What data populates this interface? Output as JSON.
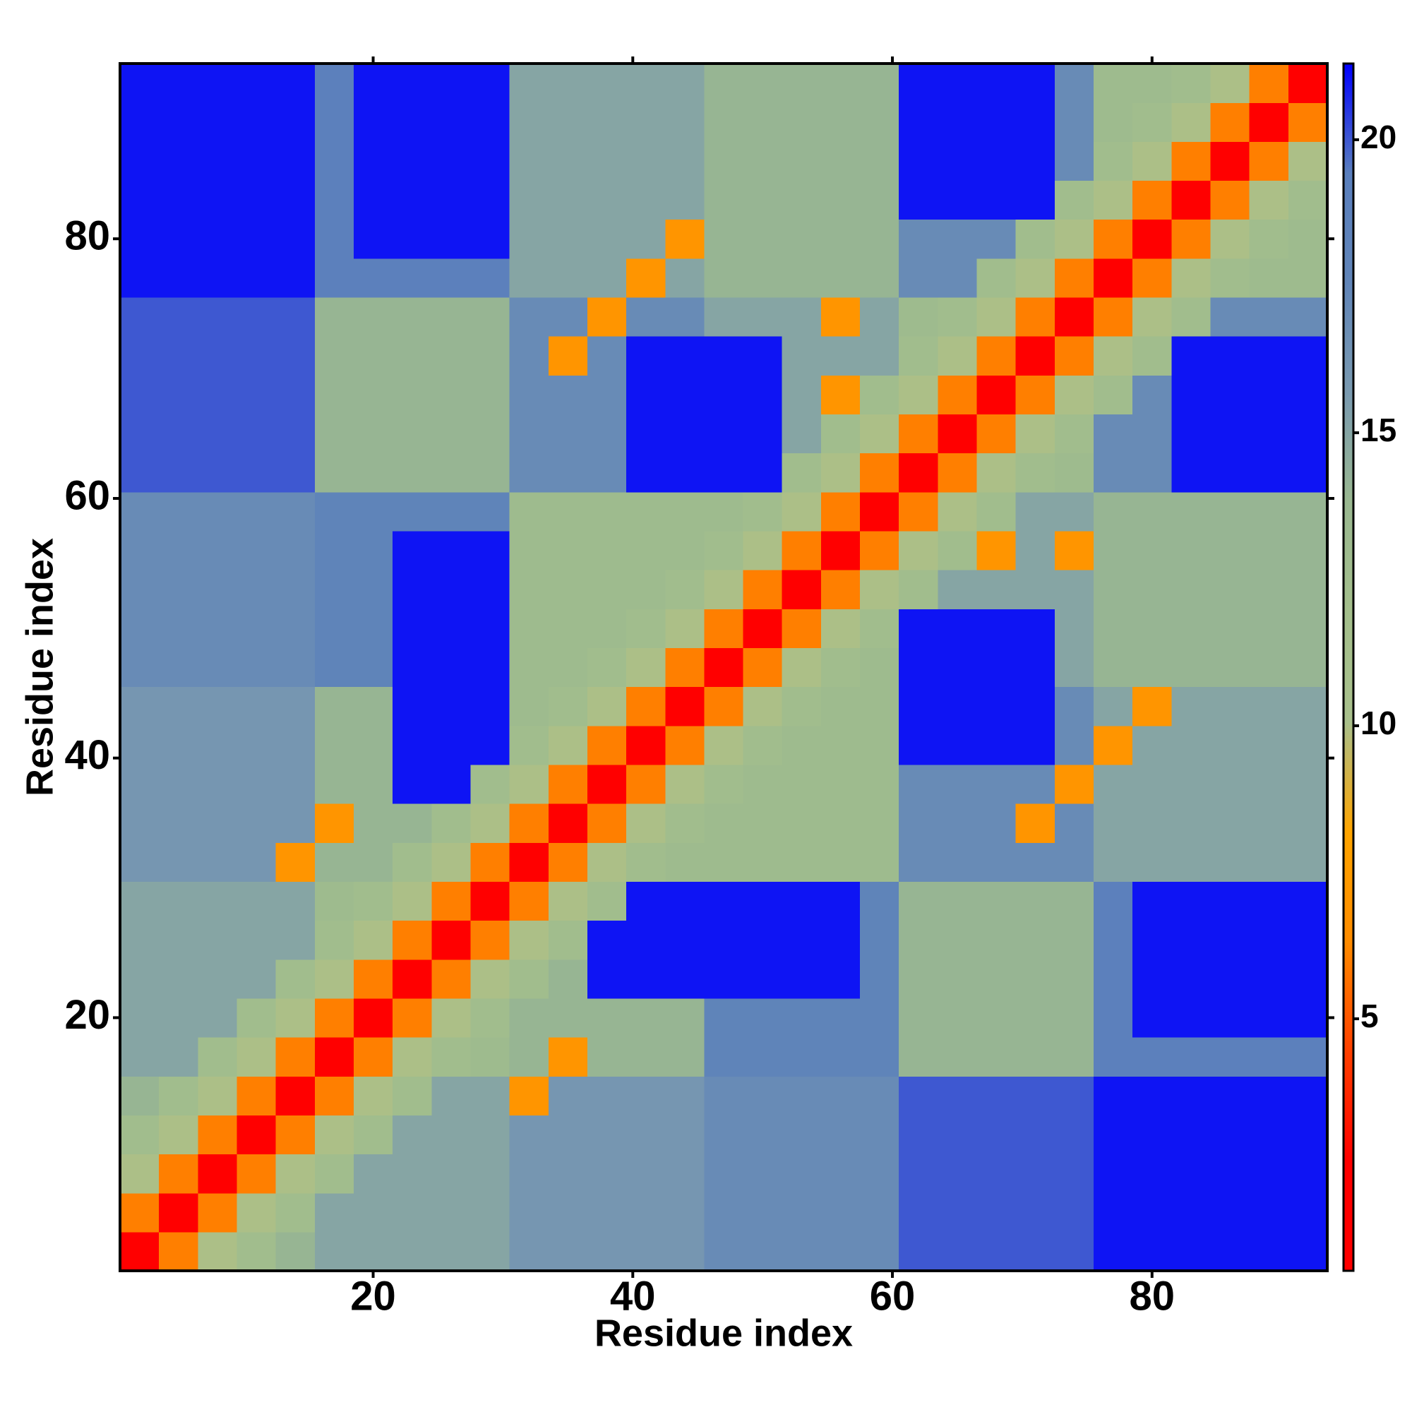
{
  "chart_data": {
    "type": "heatmap",
    "x_label": "Residue index",
    "y_label": "Residue index",
    "xlim": [
      0.5,
      93.5
    ],
    "ylim": [
      0.5,
      93.5
    ],
    "xticks": [
      20,
      40,
      60,
      80
    ],
    "yticks": [
      20,
      40,
      60,
      80
    ],
    "zlim": [
      0.7,
      21.3
    ],
    "zticks": [
      5,
      10,
      15,
      20
    ],
    "colormap": [
      "#ff0000",
      "#ff0000",
      "#ff4000",
      "#ff8c00",
      "#ffa500",
      "#a9c08c",
      "#a4bf8c",
      "#9ab890",
      "#7a9ab0",
      "#6185b8",
      "#5a7fbd",
      "#0000ff"
    ],
    "values": [
      [
        2,
        6,
        10,
        12.5,
        14,
        15,
        15,
        15,
        15,
        15,
        16,
        16,
        16,
        16,
        16,
        17,
        17,
        17,
        17,
        17,
        20,
        20,
        20,
        20,
        20,
        21,
        21,
        21,
        21,
        21,
        21
      ],
      [
        6,
        2,
        6,
        10,
        12.5,
        15,
        15,
        15,
        15,
        15,
        16,
        16,
        16,
        16,
        16,
        17,
        17,
        17,
        17,
        17,
        20,
        20,
        20,
        20,
        20,
        21,
        21,
        21,
        21,
        21,
        21
      ],
      [
        10,
        6,
        2,
        6,
        10,
        12.5,
        15,
        15,
        15,
        15,
        16,
        16,
        16,
        16,
        16,
        17,
        17,
        17,
        17,
        17,
        20,
        20,
        20,
        20,
        20,
        21,
        21,
        21,
        21,
        21,
        21
      ],
      [
        12.5,
        10,
        6,
        2,
        6,
        10,
        12.5,
        15,
        15,
        15,
        16,
        16,
        16,
        16,
        16,
        17,
        17,
        17,
        17,
        17,
        20,
        20,
        20,
        20,
        20,
        21,
        21,
        21,
        21,
        21,
        21
      ],
      [
        14,
        12.5,
        10,
        6,
        2,
        6,
        10,
        12.5,
        15,
        15,
        7,
        16,
        16,
        16,
        16,
        17,
        17,
        17,
        17,
        17,
        20,
        20,
        20,
        20,
        20,
        21,
        21,
        21,
        21,
        21,
        21
      ],
      [
        15,
        15,
        12.5,
        10,
        6,
        2,
        6,
        10,
        12.5,
        13,
        14,
        7,
        14,
        14,
        14,
        18,
        18,
        18,
        18,
        18,
        14,
        14,
        14,
        14,
        14,
        19,
        19,
        19,
        19,
        19,
        19
      ],
      [
        15,
        15,
        15,
        12.5,
        10,
        6,
        2,
        6,
        10,
        12.5,
        14,
        14,
        14,
        14,
        14,
        18,
        18,
        18,
        18,
        18,
        14,
        14,
        14,
        14,
        14,
        19,
        21,
        21,
        21,
        21,
        21
      ],
      [
        15,
        15,
        15,
        15,
        12.5,
        10,
        6,
        2,
        6,
        10,
        12.5,
        14,
        21,
        21,
        21,
        21,
        21,
        21,
        21,
        18,
        14,
        14,
        14,
        14,
        14,
        19,
        21,
        21,
        21,
        21,
        21
      ],
      [
        15,
        15,
        15,
        15,
        15,
        12.5,
        10,
        6,
        2,
        6,
        10,
        12.5,
        21,
        21,
        21,
        21,
        21,
        21,
        21,
        18,
        14,
        14,
        14,
        14,
        14,
        19,
        21,
        21,
        21,
        21,
        21
      ],
      [
        15,
        15,
        15,
        15,
        15,
        13,
        12.5,
        10,
        6,
        2,
        6,
        10,
        12.5,
        21,
        21,
        21,
        21,
        21,
        21,
        18,
        14,
        14,
        14,
        14,
        14,
        19,
        21,
        21,
        21,
        21,
        21
      ],
      [
        16,
        16,
        16,
        16,
        7,
        14,
        14,
        12.5,
        10,
        6,
        2,
        6,
        10,
        12.5,
        13,
        13,
        13,
        13,
        13,
        13,
        17,
        17,
        17,
        17,
        17,
        15,
        15,
        15,
        15,
        15,
        15
      ],
      [
        16,
        16,
        16,
        16,
        16,
        7,
        14,
        14,
        12.5,
        10,
        6,
        2,
        6,
        10,
        12.5,
        13,
        13,
        13,
        13,
        13,
        17,
        17,
        17,
        7,
        17,
        15,
        15,
        15,
        15,
        15,
        15
      ],
      [
        16,
        16,
        16,
        16,
        16,
        14,
        14,
        21,
        21,
        12.5,
        10,
        6,
        2,
        6,
        10,
        12.5,
        13,
        13,
        13,
        13,
        17,
        17,
        17,
        17,
        7,
        15,
        15,
        15,
        15,
        15,
        15
      ],
      [
        16,
        16,
        16,
        16,
        16,
        14,
        14,
        21,
        21,
        21,
        12.5,
        10,
        6,
        2,
        6,
        10,
        12.5,
        13,
        13,
        13,
        21,
        21,
        21,
        21,
        17,
        7,
        15,
        15,
        15,
        15,
        15
      ],
      [
        16,
        16,
        16,
        16,
        16,
        14,
        14,
        21,
        21,
        21,
        13,
        12.5,
        10,
        6,
        2,
        6,
        10,
        12.5,
        13,
        13,
        21,
        21,
        21,
        21,
        17,
        15,
        7,
        15,
        15,
        15,
        15
      ],
      [
        17,
        17,
        17,
        17,
        17,
        18,
        18,
        21,
        21,
        21,
        13,
        13,
        12.5,
        10,
        6,
        2,
        6,
        10,
        12.5,
        13,
        21,
        21,
        21,
        21,
        15,
        14,
        14,
        14,
        14,
        14,
        14
      ],
      [
        17,
        17,
        17,
        17,
        17,
        18,
        18,
        21,
        21,
        21,
        13,
        13,
        13,
        12.5,
        10,
        6,
        2,
        6,
        10,
        12.5,
        21,
        21,
        21,
        21,
        15,
        14,
        14,
        14,
        14,
        14,
        14
      ],
      [
        17,
        17,
        17,
        17,
        17,
        18,
        18,
        21,
        21,
        21,
        13,
        13,
        13,
        13,
        12.5,
        10,
        6,
        2,
        6,
        10,
        12.5,
        15,
        15,
        15,
        15,
        14,
        14,
        14,
        14,
        14,
        14
      ],
      [
        17,
        17,
        17,
        17,
        17,
        18,
        18,
        21,
        21,
        21,
        13,
        13,
        13,
        13,
        13,
        12.5,
        10,
        6,
        2,
        6,
        10,
        12.5,
        7,
        15,
        7,
        14,
        14,
        14,
        14,
        14,
        14
      ],
      [
        17,
        17,
        17,
        17,
        17,
        18,
        18,
        18,
        18,
        18,
        13,
        13,
        13,
        13,
        13,
        13,
        12.5,
        10,
        6,
        2,
        6,
        10,
        12.5,
        15,
        15,
        14,
        14,
        14,
        14,
        14,
        14
      ],
      [
        20,
        20,
        20,
        20,
        20,
        14,
        14,
        14,
        14,
        14,
        17,
        17,
        17,
        21,
        21,
        21,
        21,
        12.5,
        10,
        6,
        2,
        6,
        10,
        12.5,
        13,
        17,
        17,
        21,
        21,
        21,
        21
      ],
      [
        20,
        20,
        20,
        20,
        20,
        14,
        14,
        14,
        14,
        14,
        17,
        17,
        17,
        21,
        21,
        21,
        21,
        15,
        12.5,
        10,
        6,
        2,
        6,
        10,
        12.5,
        17,
        17,
        21,
        21,
        21,
        21
      ],
      [
        20,
        20,
        20,
        20,
        20,
        14,
        14,
        14,
        14,
        14,
        17,
        17,
        17,
        21,
        21,
        21,
        21,
        15,
        7,
        12.5,
        10,
        6,
        2,
        6,
        10,
        12.5,
        17,
        21,
        21,
        21,
        21
      ],
      [
        20,
        20,
        20,
        20,
        20,
        14,
        14,
        14,
        14,
        14,
        17,
        7,
        17,
        21,
        21,
        21,
        21,
        15,
        15,
        15,
        12.5,
        10,
        6,
        2,
        6,
        10,
        12.5,
        21,
        21,
        21,
        21
      ],
      [
        20,
        20,
        20,
        20,
        20,
        14,
        14,
        14,
        14,
        14,
        17,
        17,
        7,
        17,
        17,
        15,
        15,
        15,
        7,
        15,
        13,
        12.5,
        10,
        6,
        2,
        6,
        10,
        12.5,
        17,
        17,
        17
      ],
      [
        21,
        21,
        21,
        21,
        21,
        19,
        19,
        19,
        19,
        19,
        15,
        15,
        15,
        7,
        15,
        14,
        14,
        14,
        14,
        14,
        17,
        17,
        12.5,
        10,
        6,
        2,
        6,
        10,
        12.5,
        13,
        13
      ],
      [
        21,
        21,
        21,
        21,
        21,
        19,
        21,
        21,
        21,
        21,
        15,
        15,
        15,
        15,
        7,
        14,
        14,
        14,
        14,
        14,
        17,
        17,
        17,
        12.5,
        10,
        6,
        2,
        6,
        10,
        12.5,
        13
      ],
      [
        21,
        21,
        21,
        21,
        21,
        19,
        21,
        21,
        21,
        21,
        15,
        15,
        15,
        15,
        15,
        14,
        14,
        14,
        14,
        14,
        21,
        21,
        21,
        21,
        12.5,
        10,
        6,
        2,
        6,
        10,
        12.5
      ],
      [
        21,
        21,
        21,
        21,
        21,
        19,
        21,
        21,
        21,
        21,
        15,
        15,
        15,
        15,
        15,
        14,
        14,
        14,
        14,
        14,
        21,
        21,
        21,
        21,
        17,
        12.5,
        10,
        6,
        2,
        6,
        10
      ],
      [
        21,
        21,
        21,
        21,
        21,
        19,
        21,
        21,
        21,
        21,
        15,
        15,
        15,
        15,
        15,
        14,
        14,
        14,
        14,
        14,
        21,
        21,
        21,
        21,
        17,
        13,
        12.5,
        10,
        6,
        2,
        6
      ],
      [
        21,
        21,
        21,
        21,
        21,
        19,
        21,
        21,
        21,
        21,
        15,
        15,
        15,
        15,
        15,
        14,
        14,
        14,
        14,
        14,
        21,
        21,
        21,
        21,
        17,
        13,
        13,
        12.5,
        10,
        6,
        2
      ]
    ]
  }
}
